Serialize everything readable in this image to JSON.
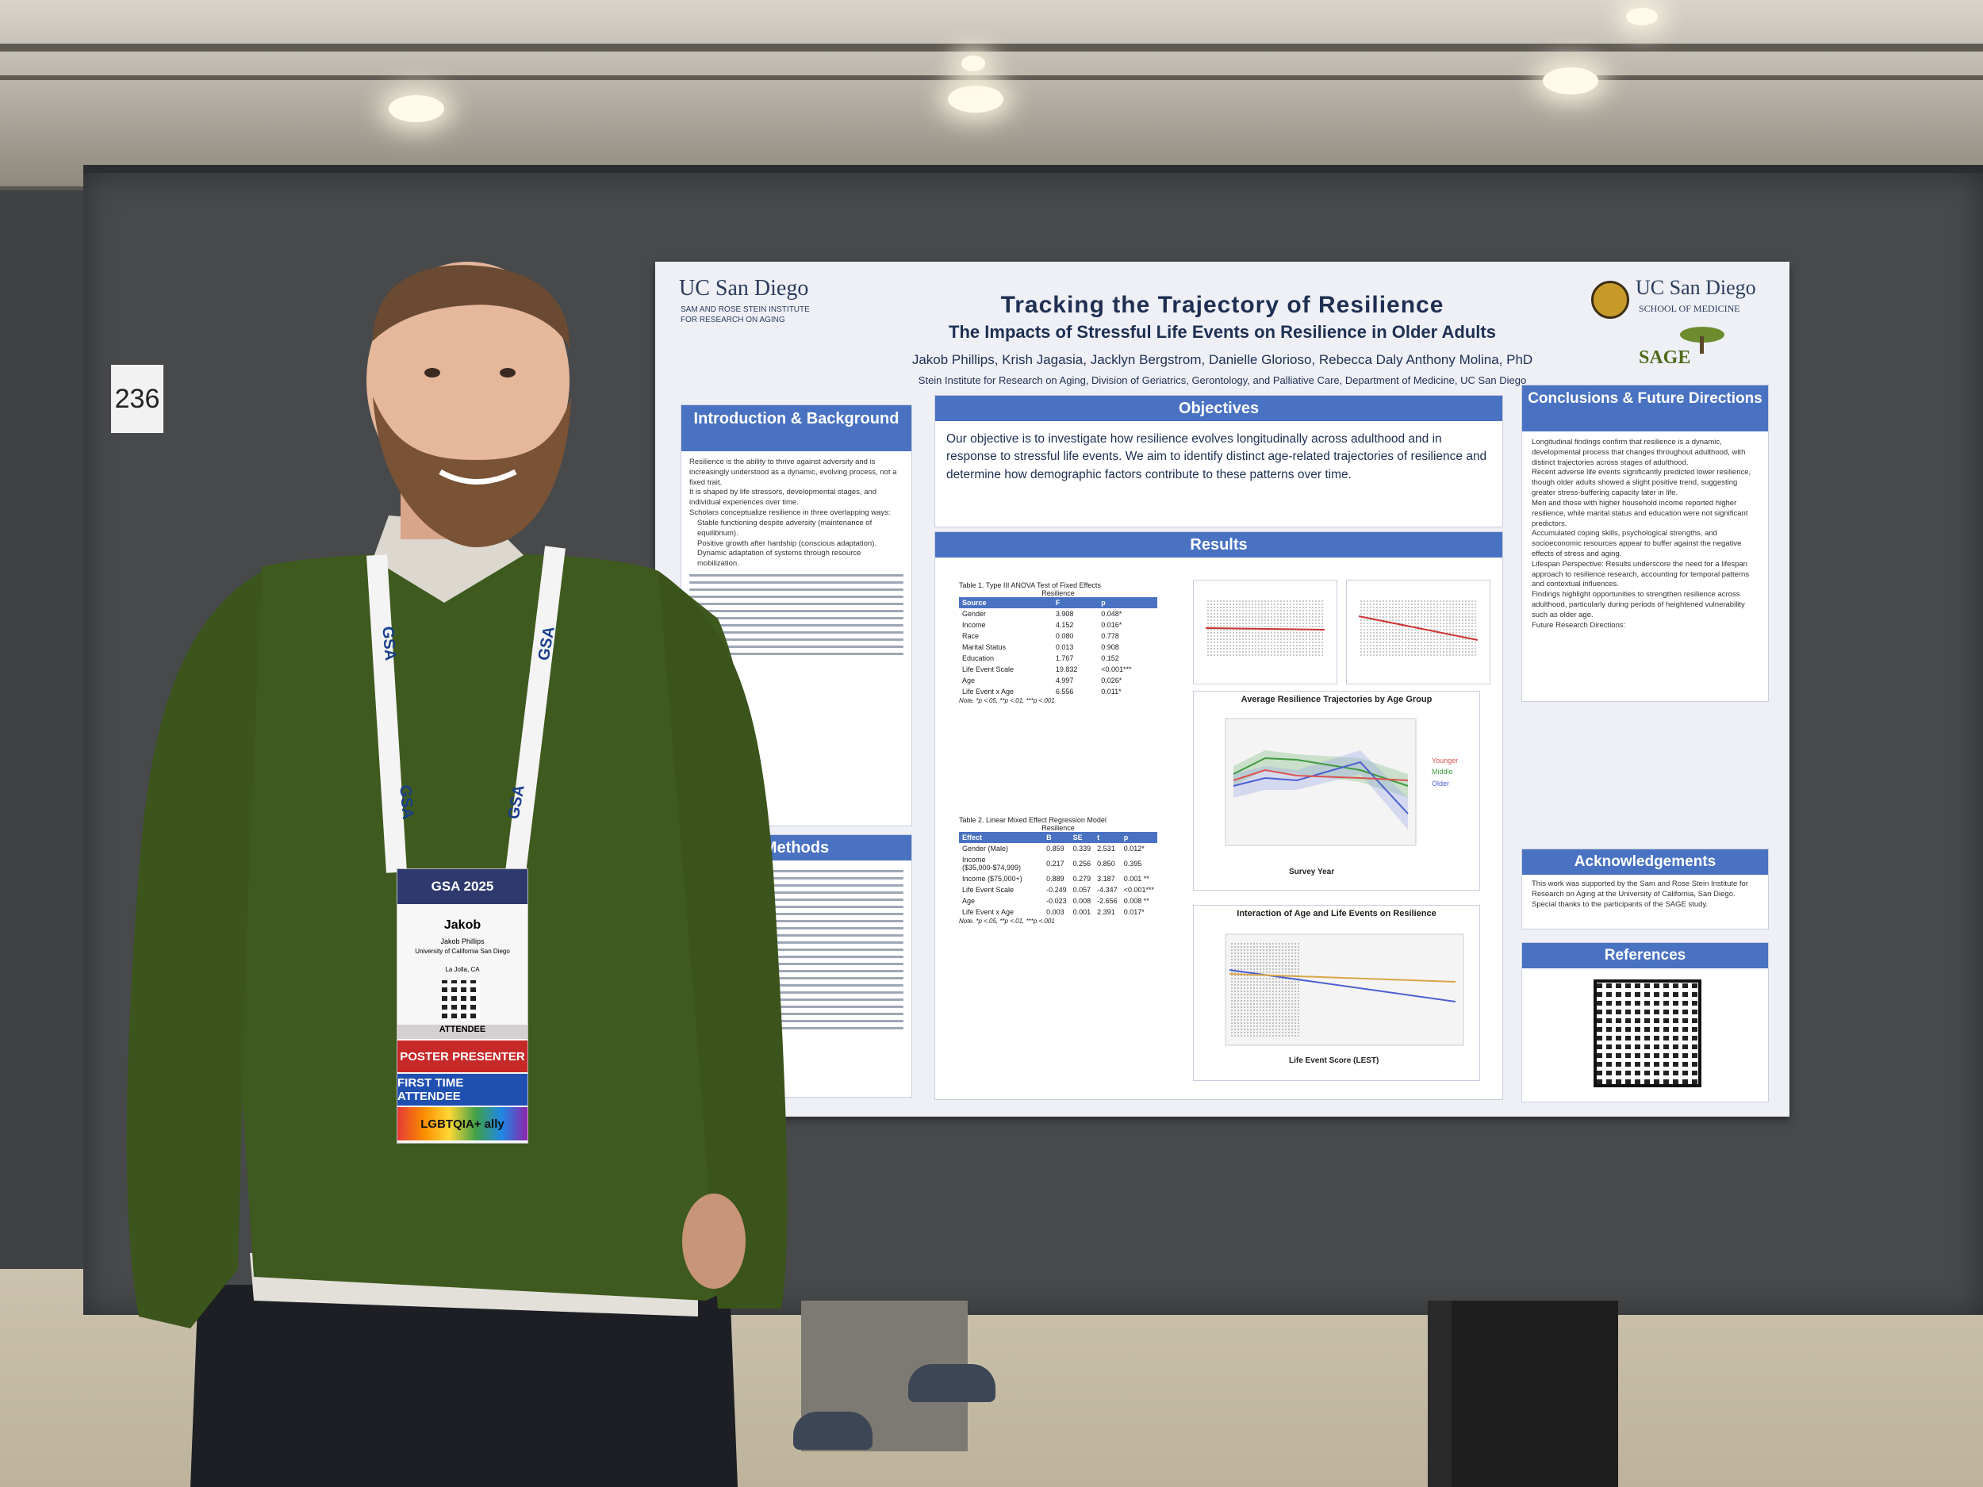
{
  "booth_number": "236",
  "colors": {
    "section_bar": "#4a72c2",
    "board": "#47494b",
    "sweater": "#3e5a1e"
  },
  "poster": {
    "left_logo": {
      "name": "UC San Diego",
      "line1": "SAM AND ROSE STEIN INSTITUTE",
      "line2": "FOR RESEARCH ON AGING"
    },
    "right_logo": {
      "name": "UC San Diego",
      "school": "SCHOOL OF MEDICINE",
      "partner": "SAGE"
    },
    "title": "Tracking the Trajectory of Resilience",
    "subtitle": "The Impacts of Stressful Life Events on Resilience in Older Adults",
    "authors": "Jakob Phillips, Krish Jagasia, Jacklyn Bergstrom, Danielle Glorioso, Rebecca Daly Anthony Molina, PhD",
    "affiliation": "Stein Institute for Research on Aging, Division of Geriatrics, Gerontology, and Palliative Care, Department of Medicine, UC San Diego",
    "intro": {
      "heading": "Introduction & Background",
      "bullets": [
        "Resilience is the ability to thrive against adversity and is increasingly understood as a dynamic, evolving process, not a fixed trait.",
        "It is shaped by life stressors, developmental stages, and individual experiences over time.",
        "Scholars conceptualize resilience in three overlapping ways:",
        "Stable functioning despite adversity (maintenance of equilibrium).",
        "Positive growth after hardship (conscious adaptation).",
        "Dynamic adaptation of systems through resource mobilization."
      ]
    },
    "methods": {
      "heading": "Methods"
    },
    "objectives": {
      "heading": "Objectives",
      "text": "Our objective is to investigate how resilience evolves longitudinally across adulthood and in response to stressful life events. We aim to identify distinct age-related trajectories of resilience and determine how demographic factors contribute to these patterns over time."
    },
    "results": {
      "heading": "Results",
      "table1": {
        "caption": "Table 1. Type III ANOVA Test of Fixed Effects",
        "group": "Resilience",
        "columns": [
          "Source",
          "F",
          "p"
        ],
        "rows": [
          [
            "Gender",
            "3.908",
            "0.048*"
          ],
          [
            "Income",
            "4.152",
            "0.016*"
          ],
          [
            "Race",
            "0.080",
            "0.778"
          ],
          [
            "Marital Status",
            "0.013",
            "0.908"
          ],
          [
            "Education",
            "1.767",
            "0.152"
          ],
          [
            "Life Event Scale",
            "19.832",
            "<0.001***"
          ],
          [
            "Age",
            "4.997",
            "0.026*"
          ],
          [
            "Life Event x Age",
            "6.556",
            "0.011*"
          ]
        ],
        "note": "Note. *p <.05, **p <.01, ***p <.001"
      },
      "table2": {
        "caption": "Table 2. Linear Mixed Effect Regression Model",
        "group": "Resilience",
        "columns": [
          "Effect",
          "B",
          "SE",
          "t",
          "p"
        ],
        "rows": [
          [
            "Gender (Male)",
            "0.859",
            "0.339",
            "2.531",
            "0.012*"
          ],
          [
            "Income ($35,000-$74,999)",
            "0.217",
            "0.256",
            "0.850",
            "0.395"
          ],
          [
            "Income ($75,000+)",
            "0.889",
            "0.279",
            "3.187",
            "0.001 **"
          ],
          [
            "Life Event Scale",
            "-0.249",
            "0.057",
            "-4.347",
            "<0.001***"
          ],
          [
            "Age",
            "-0.023",
            "0.008",
            "-2.656",
            "0.008 **"
          ],
          [
            "Life Event x Age",
            "0.003",
            "0.001",
            "2.391",
            "0.017*"
          ]
        ],
        "note": "Note. *p <.05, **p <.01, ***p <.001"
      },
      "fig3_title": "Average Resilience Trajectories by Age Group",
      "fig3_xlabel": "Survey Year",
      "fig3_legend": [
        "Younger",
        "Middle",
        "Older"
      ],
      "fig4_title": "Interaction of Age and Life Events on Resilience",
      "fig4_xlabel": "Life Event Score (LEST)"
    },
    "conclusions": {
      "heading": "Conclusions & Future Directions",
      "bullets": [
        "Longitudinal findings confirm that resilience is a dynamic, developmental process that changes throughout adulthood, with distinct trajectories across stages of adulthood.",
        "Recent adverse life events significantly predicted lower resilience, though older adults showed a slight positive trend, suggesting greater stress-buffering capacity later in life.",
        "Men and those with higher household income reported higher resilience, while marital status and education were not significant predictors.",
        "Accumulated coping skills, psychological strengths, and socioeconomic resources appear to buffer against the negative effects of stress and aging.",
        "Lifespan Perspective: Results underscore the need for a lifespan approach to resilience research, accounting for temporal patterns and contextual influences.",
        "Findings highlight opportunities to strengthen resilience across adulthood, particularly during periods of heightened vulnerability such as older age.",
        "Future Research Directions:"
      ]
    },
    "acknowledgements": {
      "heading": "Acknowledgements",
      "text": "This work was supported by the Sam and Rose Stein Institute for Research on Aging at the University of California, San Diego. Special thanks to the participants of the SAGE study."
    },
    "references": {
      "heading": "References"
    }
  },
  "badge": {
    "event": "GSA 2025",
    "first_name": "Jakob",
    "full_name": "Jakob Phillips",
    "org": "University of California San Diego",
    "city": "La Jolla, CA",
    "role": "ATTENDEE",
    "ribbons": [
      "POSTER PRESENTER",
      "FIRST TIME ATTENDEE",
      "LGBTQIA+ ally"
    ]
  },
  "lanyard_text": "GSA"
}
